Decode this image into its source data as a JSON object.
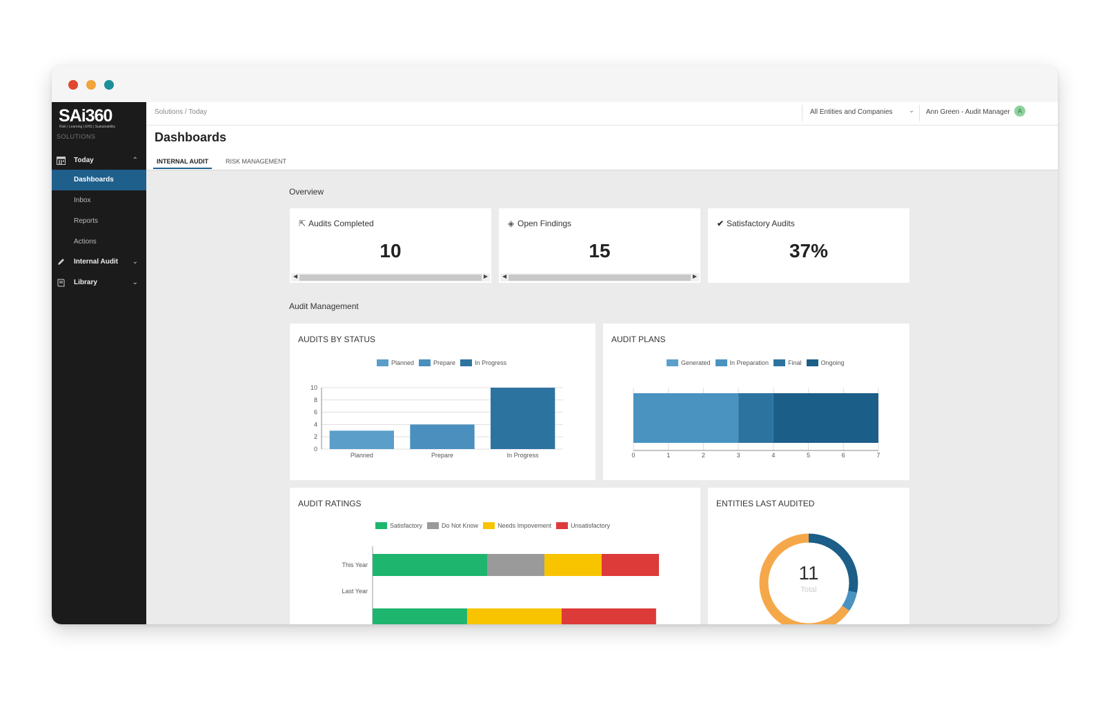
{
  "brand": {
    "logo": "SAi360",
    "tagline": "Risk | Learning | EHS | Sustainability"
  },
  "window_dots": [
    "#e0472f",
    "#f2a33a",
    "#1b8f9a"
  ],
  "sidebar": {
    "section_label": "SOLUTIONS",
    "items": [
      {
        "label": "Today",
        "icon": "calendar-icon",
        "expanded": true
      },
      {
        "label": "Dashboards",
        "active": true
      },
      {
        "label": "Inbox"
      },
      {
        "label": "Reports"
      },
      {
        "label": "Actions"
      },
      {
        "label": "Internal Audit",
        "icon": "pencil-icon"
      },
      {
        "label": "Library",
        "icon": "book-icon"
      }
    ]
  },
  "topbar": {
    "breadcrumb": "Solutions  /  Today",
    "entity_selector": "All Entities and Companies",
    "user": "Ann Green - Audit Manager",
    "avatar_initial": "A"
  },
  "header": {
    "title": "Dashboards",
    "tabs": [
      {
        "label": "INTERNAL AUDIT",
        "active": true
      },
      {
        "label": "RISK MANAGEMENT"
      }
    ]
  },
  "overview": {
    "label": "Overview",
    "kpis": [
      {
        "title": "Audits Completed",
        "value": "10",
        "icon": "export-icon"
      },
      {
        "title": "Open Findings",
        "value": "15",
        "icon": "diamond-icon"
      },
      {
        "title": "Satisfactory Audits",
        "value": "37%",
        "icon": "check-icon"
      }
    ]
  },
  "audit_management": {
    "label": "Audit Management"
  },
  "chart_data": [
    {
      "type": "bar",
      "title": "AUDITS BY STATUS",
      "categories": [
        "Planned",
        "Prepare",
        "In Progress"
      ],
      "values": [
        3,
        4,
        10
      ],
      "colors": [
        "#5b9ec9",
        "#4a8fbd",
        "#2d73a0"
      ],
      "legend": [
        "Planned",
        "Prepare",
        "In Progress"
      ],
      "ylim": [
        0,
        10
      ],
      "yticks": [
        "0",
        "2",
        "4",
        "6",
        "8",
        "10"
      ],
      "legend_position": "top"
    },
    {
      "type": "bar",
      "orientation": "horizontal-stacked",
      "title": "AUDIT PLANS",
      "series": [
        {
          "name": "Generated",
          "values": [
            3
          ],
          "color": "#4a93c0"
        },
        {
          "name": "In Preparation",
          "values": [
            0
          ]
        },
        {
          "name": "Final",
          "values": [
            1
          ],
          "color": "#2d73a0"
        },
        {
          "name": "Ongoing",
          "values": [
            3
          ],
          "color": "#1b5e88"
        }
      ],
      "legend_colors": [
        "#5ba0cc",
        "#4a93c0",
        "#2d73a0",
        "#1b5e88"
      ],
      "xlim": [
        0,
        7
      ],
      "xticks": [
        "0",
        "1",
        "2",
        "3",
        "4",
        "5",
        "6",
        "7"
      ],
      "legend_position": "top"
    },
    {
      "type": "bar",
      "orientation": "horizontal-stacked",
      "title": "AUDIT RATINGS",
      "categories": [
        "This Year",
        "Last Year"
      ],
      "series": [
        {
          "name": "Satisfactory",
          "color": "#1eb56e",
          "values": [
            0.4,
            0.33
          ]
        },
        {
          "name": "Do Not Know",
          "color": "#9a9a9a",
          "values": [
            0.2,
            0
          ]
        },
        {
          "name": "Needs Impovement",
          "color": "#f8c400",
          "values": [
            0.2,
            0.33
          ]
        },
        {
          "name": "Unsatisfactory",
          "color": "#dd3a3a",
          "values": [
            0.2,
            0.33
          ]
        }
      ],
      "legend_position": "top"
    },
    {
      "type": "pie",
      "style": "donut",
      "title": "ENTITIES LAST AUDITED",
      "center_value": "11",
      "center_label": "Total",
      "slices": [
        {
          "value": 3.1,
          "color": "#1b5e88"
        },
        {
          "value": 0.7,
          "color": "#4a93c0"
        },
        {
          "value": 7.2,
          "color": "#f5a84a"
        }
      ]
    }
  ]
}
